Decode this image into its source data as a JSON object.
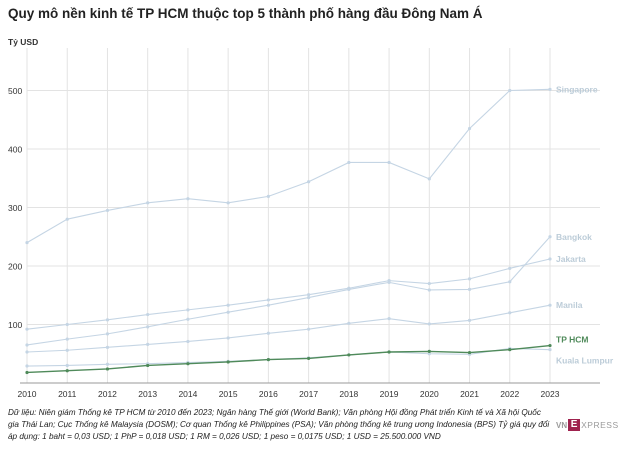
{
  "title": "Quy mô nền kinh tế TP HCM thuộc top 5 thành phố hàng đầu Đông Nam Á",
  "source_note": "Dữ liệu: Niên giám Thống kê TP HCM từ 2010 đến 2023; Ngân hàng Thế giới (World Bank); Văn phòng Hội đồng Phát triển Kinh tế và Xã hội Quốc gia Thái Lan; Cục Thống kê Malaysia (DOSM); Cơ quan Thống kê Philippines (PSA); Văn phòng thống kê trung ương Indonesia (BPS) Tỷ giá quy đổi áp dụng: 1 baht = 0,03 USD; 1 PhP = 0,018 USD; 1 RM = 0,026 USD; 1 peso = 0,0175 USD; 1 USD = 25.500.000 VND",
  "brand": {
    "vn": "VN",
    "e": "E",
    "xpress": "XPRESS"
  },
  "colors": {
    "muted": "#c5d5e4",
    "muted_label": "#bcccd8",
    "highlight": "#4f8a5a",
    "grid": "#e3e3e3",
    "axis_text": "#333333"
  },
  "chart_data": {
    "type": "line",
    "ylabel": "Tỷ USD",
    "ylim": [
      0,
      520
    ],
    "yticks": [
      0,
      100,
      200,
      300,
      400,
      500
    ],
    "grid": true,
    "x": [
      2010,
      2011,
      2012,
      2013,
      2014,
      2015,
      2016,
      2017,
      2018,
      2019,
      2020,
      2021,
      2022,
      2023
    ],
    "series": [
      {
        "name": "Singapore",
        "highlight": false,
        "values": [
          240,
          280,
          295,
          308,
          315,
          308,
          319,
          344,
          377,
          377,
          349,
          435,
          500,
          502
        ]
      },
      {
        "name": "Bangkok",
        "highlight": false,
        "values": [
          65,
          75,
          84,
          96,
          109,
          121,
          133,
          146,
          160,
          172,
          159,
          160,
          173,
          250
        ]
      },
      {
        "name": "Jakarta",
        "highlight": false,
        "values": [
          92,
          100,
          108,
          117,
          125,
          133,
          142,
          151,
          162,
          175,
          170,
          178,
          196,
          212
        ]
      },
      {
        "name": "Manila",
        "highlight": false,
        "values": [
          53,
          56,
          61,
          66,
          71,
          77,
          85,
          92,
          102,
          110,
          101,
          107,
          120,
          133
        ]
      },
      {
        "name": "Kuala Lumpur",
        "highlight": false,
        "values": [
          29,
          30,
          32,
          33,
          35,
          37,
          40,
          43,
          48,
          53,
          50,
          49,
          59,
          57
        ]
      },
      {
        "name": "TP HCM",
        "highlight": true,
        "values": [
          18,
          21,
          24,
          30,
          33,
          36,
          40,
          42,
          48,
          53,
          54,
          52,
          57,
          64
        ]
      }
    ]
  }
}
